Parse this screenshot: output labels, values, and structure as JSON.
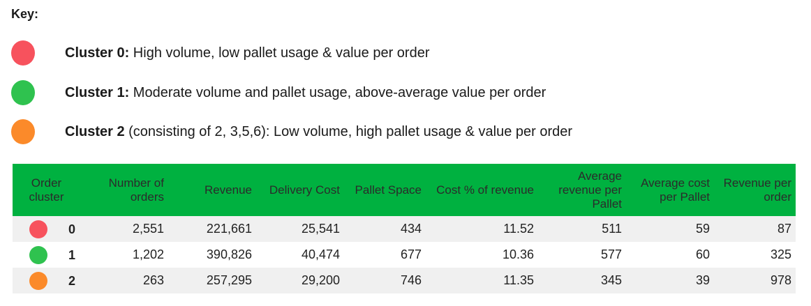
{
  "key": {
    "title": "Key:",
    "items": [
      {
        "label": "Cluster 0:",
        "text": " High volume, low pallet usage & value per order",
        "color": "#f7525d"
      },
      {
        "label": "Cluster 1:",
        "text": " Moderate volume and pallet usage, above-average value per order",
        "color": "#2fc24f"
      },
      {
        "label": "Cluster 2",
        "text": " (consisting of 2, 3,5,6): Low volume, high pallet usage & value per order",
        "color": "#fb8a2a"
      }
    ]
  },
  "table": {
    "header_color": "#00b140",
    "columns": [
      "Order cluster",
      "Number of orders",
      "Revenue",
      "Delivery Cost",
      "Pallet Space",
      "Cost % of revenue",
      "Average revenue per Pallet",
      "Average cost per Pallet",
      "Revenue per order"
    ],
    "rows": [
      {
        "cluster": "0",
        "color": "#f7525d",
        "orders": "2,551",
        "revenue": "221,661",
        "delivery_cost": "25,541",
        "pallet_space": "434",
        "cost_pct": "11.52",
        "avg_rev_pallet": "511",
        "avg_cost_pallet": "59",
        "rev_per_order": "87"
      },
      {
        "cluster": "1",
        "color": "#2fc24f",
        "orders": "1,202",
        "revenue": "390,826",
        "delivery_cost": "40,474",
        "pallet_space": "677",
        "cost_pct": "10.36",
        "avg_rev_pallet": "577",
        "avg_cost_pallet": "60",
        "rev_per_order": "325"
      },
      {
        "cluster": "2",
        "color": "#fb8a2a",
        "orders": "263",
        "revenue": "257,295",
        "delivery_cost": "29,200",
        "pallet_space": "746",
        "cost_pct": "11.35",
        "avg_rev_pallet": "345",
        "avg_cost_pallet": "39",
        "rev_per_order": "978"
      }
    ]
  }
}
